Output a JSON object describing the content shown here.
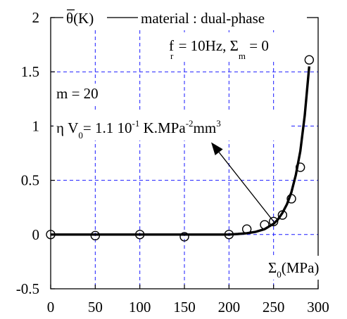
{
  "chart_data": {
    "type": "scatter",
    "title": "",
    "xlabel_main": "Σ",
    "xlabel_sub": "0",
    "xlabel_unit": "(MPa)",
    "ylabel_main": "θ",
    "ylabel_unit": "(K)",
    "xlim": [
      0,
      300
    ],
    "ylim": [
      -0.5,
      2
    ],
    "x_ticks": [
      0,
      50,
      100,
      150,
      200,
      250,
      300
    ],
    "y_ticks": [
      -0.5,
      0,
      0.5,
      1,
      1.5,
      2
    ],
    "x_tick_labels": [
      "0",
      "50",
      "100",
      "150",
      "200",
      "250",
      "300"
    ],
    "y_tick_labels": [
      "-0.5",
      "0",
      "0.5",
      "1",
      "1.5",
      "2"
    ],
    "grid": true,
    "grid_style": "dashed",
    "series": [
      {
        "kind": "markers",
        "marker": "open-circle",
        "x": [
          0,
          50,
          100,
          150,
          200,
          220,
          240,
          250,
          260,
          270,
          280,
          290
        ],
        "y": [
          0.0,
          -0.01,
          0.0,
          -0.02,
          0.0,
          0.05,
          0.09,
          0.12,
          0.18,
          0.33,
          0.62,
          1.61
        ]
      },
      {
        "kind": "curve",
        "x": [
          0,
          50,
          100,
          150,
          200,
          210,
          220,
          230,
          240,
          250,
          255,
          260,
          265,
          270,
          275,
          280,
          285,
          290
        ],
        "y": [
          0,
          0,
          0,
          0,
          0.0,
          0.005,
          0.012,
          0.025,
          0.05,
          0.1,
          0.14,
          0.2,
          0.28,
          0.39,
          0.55,
          0.77,
          1.1,
          1.55
        ]
      }
    ],
    "annotations": {
      "material": "material : dual-phase",
      "freq_f": "f",
      "freq_f_sub": "r",
      "freq_rest": " = 10Hz, Σ",
      "sigma_m_sub": "m",
      "sigma_m_rest": " = 0",
      "m_label": "m = 20",
      "eta_part1": "η V",
      "eta_sub": "0",
      "eta_part2": "= 1.1 10",
      "eta_sup1": "-1",
      "eta_part3": " K.MPa",
      "eta_sup2": "-2",
      "eta_part4": "mm",
      "eta_sup3": "3"
    },
    "arrow": {
      "from": [
        252,
        0.1
      ],
      "to": [
        180,
        0.85
      ]
    }
  }
}
